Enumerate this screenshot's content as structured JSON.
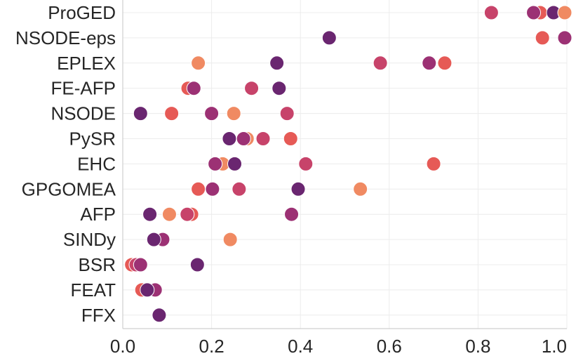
{
  "chart_data": {
    "type": "scatter",
    "orientation": "horizontal-strip",
    "categories": [
      "ProGED",
      "NSODE-eps",
      "EPLEX",
      "FE-AFP",
      "NSODE",
      "PySR",
      "EHC",
      "GPGOMEA",
      "AFP",
      "SINDy",
      "BSR",
      "FEAT",
      "FFX"
    ],
    "xlim": [
      0.0,
      1.0
    ],
    "xticks": [
      "0.0",
      "0.2",
      "0.4",
      "0.6",
      "0.8",
      "1.0"
    ],
    "grid": true,
    "legend": "none",
    "palette": [
      "#f08a62",
      "#e65a56",
      "#c7436a",
      "#9c3174",
      "#6a2670"
    ],
    "points": [
      {
        "category": "ProGED",
        "x": 0.83,
        "color": "#c7436a"
      },
      {
        "category": "ProGED",
        "x": 0.94,
        "color": "#e65a56"
      },
      {
        "category": "ProGED",
        "x": 0.925,
        "color": "#9c3174"
      },
      {
        "category": "ProGED",
        "x": 0.97,
        "color": "#6a2670"
      },
      {
        "category": "ProGED",
        "x": 1.0,
        "color": "#f08a62"
      },
      {
        "category": "NSODE-eps",
        "x": 0.465,
        "color": "#6a2670"
      },
      {
        "category": "NSODE-eps",
        "x": 0.945,
        "color": "#e65a56"
      },
      {
        "category": "NSODE-eps",
        "x": 1.0,
        "color": "#9c3174"
      },
      {
        "category": "EPLEX",
        "x": 0.17,
        "color": "#f08a62"
      },
      {
        "category": "EPLEX",
        "x": 0.347,
        "color": "#6a2670"
      },
      {
        "category": "EPLEX",
        "x": 0.58,
        "color": "#c7436a"
      },
      {
        "category": "EPLEX",
        "x": 0.69,
        "color": "#9c3174"
      },
      {
        "category": "EPLEX",
        "x": 0.725,
        "color": "#e65a56"
      },
      {
        "category": "FE-AFP",
        "x": 0.147,
        "color": "#e65a56"
      },
      {
        "category": "FE-AFP",
        "x": 0.16,
        "color": "#9c3174"
      },
      {
        "category": "FE-AFP",
        "x": 0.29,
        "color": "#c7436a"
      },
      {
        "category": "FE-AFP",
        "x": 0.352,
        "color": "#6a2670"
      },
      {
        "category": "NSODE",
        "x": 0.04,
        "color": "#6a2670"
      },
      {
        "category": "NSODE",
        "x": 0.11,
        "color": "#e65a56"
      },
      {
        "category": "NSODE",
        "x": 0.2,
        "color": "#9c3174"
      },
      {
        "category": "NSODE",
        "x": 0.25,
        "color": "#f08a62"
      },
      {
        "category": "NSODE",
        "x": 0.37,
        "color": "#c7436a"
      },
      {
        "category": "PySR",
        "x": 0.24,
        "color": "#6a2670"
      },
      {
        "category": "PySR",
        "x": 0.28,
        "color": "#f08a62"
      },
      {
        "category": "PySR",
        "x": 0.272,
        "color": "#9c3174"
      },
      {
        "category": "PySR",
        "x": 0.316,
        "color": "#c7436a"
      },
      {
        "category": "PySR",
        "x": 0.378,
        "color": "#e65a56"
      },
      {
        "category": "EHC",
        "x": 0.225,
        "color": "#f08a62"
      },
      {
        "category": "EHC",
        "x": 0.208,
        "color": "#9c3174"
      },
      {
        "category": "EHC",
        "x": 0.252,
        "color": "#6a2670"
      },
      {
        "category": "EHC",
        "x": 0.412,
        "color": "#c7436a"
      },
      {
        "category": "EHC",
        "x": 0.7,
        "color": "#e65a56"
      },
      {
        "category": "GPGOMEA",
        "x": 0.17,
        "color": "#e65a56"
      },
      {
        "category": "GPGOMEA",
        "x": 0.202,
        "color": "#9c3174"
      },
      {
        "category": "GPGOMEA",
        "x": 0.262,
        "color": "#c7436a"
      },
      {
        "category": "GPGOMEA",
        "x": 0.395,
        "color": "#6a2670"
      },
      {
        "category": "GPGOMEA",
        "x": 0.535,
        "color": "#f08a62"
      },
      {
        "category": "AFP",
        "x": 0.061,
        "color": "#6a2670"
      },
      {
        "category": "AFP",
        "x": 0.105,
        "color": "#f08a62"
      },
      {
        "category": "AFP",
        "x": 0.155,
        "color": "#e65a56"
      },
      {
        "category": "AFP",
        "x": 0.145,
        "color": "#c7436a"
      },
      {
        "category": "AFP",
        "x": 0.38,
        "color": "#9c3174"
      },
      {
        "category": "SINDy",
        "x": 0.09,
        "color": "#9c3174"
      },
      {
        "category": "SINDy",
        "x": 0.07,
        "color": "#6a2670"
      },
      {
        "category": "SINDy",
        "x": 0.242,
        "color": "#f08a62"
      },
      {
        "category": "BSR",
        "x": 0.02,
        "color": "#e65a56"
      },
      {
        "category": "BSR",
        "x": 0.03,
        "color": "#c7436a"
      },
      {
        "category": "BSR",
        "x": 0.04,
        "color": "#9c3174"
      },
      {
        "category": "BSR",
        "x": 0.168,
        "color": "#6a2670"
      },
      {
        "category": "FEAT",
        "x": 0.043,
        "color": "#e65a56"
      },
      {
        "category": "FEAT",
        "x": 0.073,
        "color": "#9c3174"
      },
      {
        "category": "FEAT",
        "x": 0.055,
        "color": "#6a2670"
      },
      {
        "category": "FFX",
        "x": 0.082,
        "color": "#6a2670"
      }
    ]
  }
}
